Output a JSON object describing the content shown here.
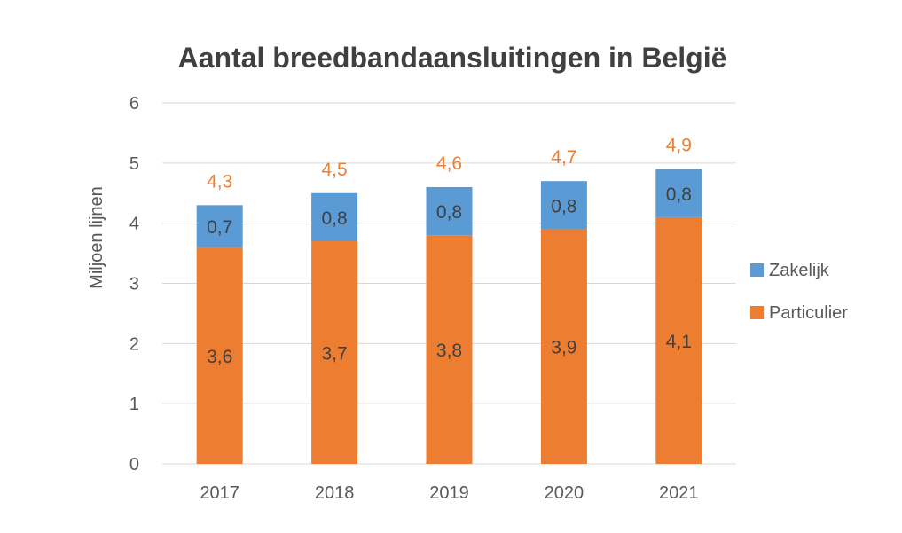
{
  "chart_data": {
    "type": "bar",
    "stacked": true,
    "title": "Aantal breedbandaansluitingen in België",
    "xlabel": "",
    "ylabel": "Miljoen lijnen",
    "ylim": [
      0,
      6
    ],
    "yticks": [
      0,
      1,
      2,
      3,
      4,
      5,
      6
    ],
    "ytick_labels": [
      "0",
      "1",
      "2",
      "3",
      "4",
      "5",
      "6"
    ],
    "grid": true,
    "legend_position": "right",
    "categories": [
      "2017",
      "2018",
      "2019",
      "2020",
      "2021"
    ],
    "series": [
      {
        "name": "Particulier",
        "color": "#ED7D31",
        "values": [
          3.6,
          3.7,
          3.8,
          3.9,
          4.1
        ],
        "labels": [
          "3,6",
          "3,7",
          "3,8",
          "3,9",
          "4,1"
        ]
      },
      {
        "name": "Zakelijk",
        "color": "#5B9BD5",
        "values": [
          0.7,
          0.8,
          0.8,
          0.8,
          0.8
        ],
        "labels": [
          "0,7",
          "0,8",
          "0,8",
          "0,8",
          "0,8"
        ]
      }
    ],
    "totals": {
      "values": [
        4.3,
        4.5,
        4.6,
        4.7,
        4.9
      ],
      "labels": [
        "4,3",
        "4,5",
        "4,6",
        "4,7",
        "4,9"
      ],
      "color": "#ED7D31"
    },
    "legend_order": [
      "Zakelijk",
      "Particulier"
    ]
  },
  "colors": {
    "gridline": "#D9D9D9",
    "axis_text": "#595959",
    "title_text": "#404040",
    "segment_label": "#404040"
  }
}
